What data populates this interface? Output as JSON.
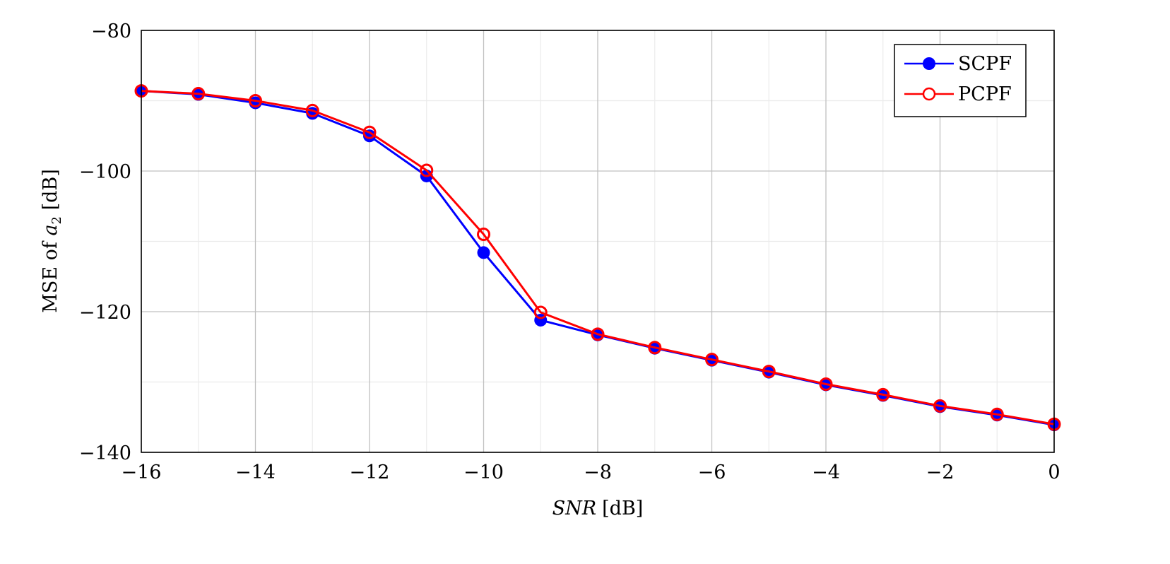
{
  "chart_data": {
    "type": "line",
    "title": "",
    "xlabel": "SNR [dB]",
    "xlabel_italic_part": "SNR",
    "xlabel_unit_part": "[dB]",
    "ylabel": "MSE of a2 [dB]",
    "ylabel_prefix": "MSE of ",
    "ylabel_var": "a",
    "ylabel_sub": "2",
    "ylabel_suffix": " [dB]",
    "xlim": [
      -16,
      0
    ],
    "ylim": [
      -140,
      -80
    ],
    "x_ticks": [
      -16,
      -14,
      -12,
      -10,
      -8,
      -6,
      -4,
      -2,
      0
    ],
    "x_tick_labels": [
      "−16",
      "−14",
      "−12",
      "−10",
      "−8",
      "−6",
      "−4",
      "−2",
      "0"
    ],
    "y_ticks": [
      -80,
      -100,
      -120,
      -140
    ],
    "y_tick_labels": [
      "−80",
      "−100",
      "−120",
      "−140"
    ],
    "grid": {
      "major": true,
      "minor": true,
      "x_minor_step": 1,
      "y_minor_step": 10
    },
    "legend_position": "upper right",
    "x": [
      -16,
      -15,
      -14,
      -13,
      -12,
      -11,
      -10,
      -9,
      -8,
      -7,
      -6,
      -5,
      -4,
      -3,
      -2,
      -1,
      0
    ],
    "series": [
      {
        "name": "SCPF",
        "color": "#0000ff",
        "marker": "filled-circle",
        "values": [
          -88.6,
          -89.1,
          -90.3,
          -91.8,
          -95.0,
          -100.7,
          -111.6,
          -121.2,
          -123.3,
          -125.2,
          -126.9,
          -128.6,
          -130.4,
          -131.9,
          -133.5,
          -134.7,
          -136.1
        ]
      },
      {
        "name": "PCPF",
        "color": "#ff0000",
        "marker": "open-circle",
        "values": [
          -88.6,
          -89.0,
          -90.0,
          -91.4,
          -94.5,
          -99.9,
          -109.0,
          -120.1,
          -123.2,
          -125.1,
          -126.8,
          -128.5,
          -130.3,
          -131.8,
          -133.4,
          -134.6,
          -136.0
        ]
      }
    ]
  }
}
